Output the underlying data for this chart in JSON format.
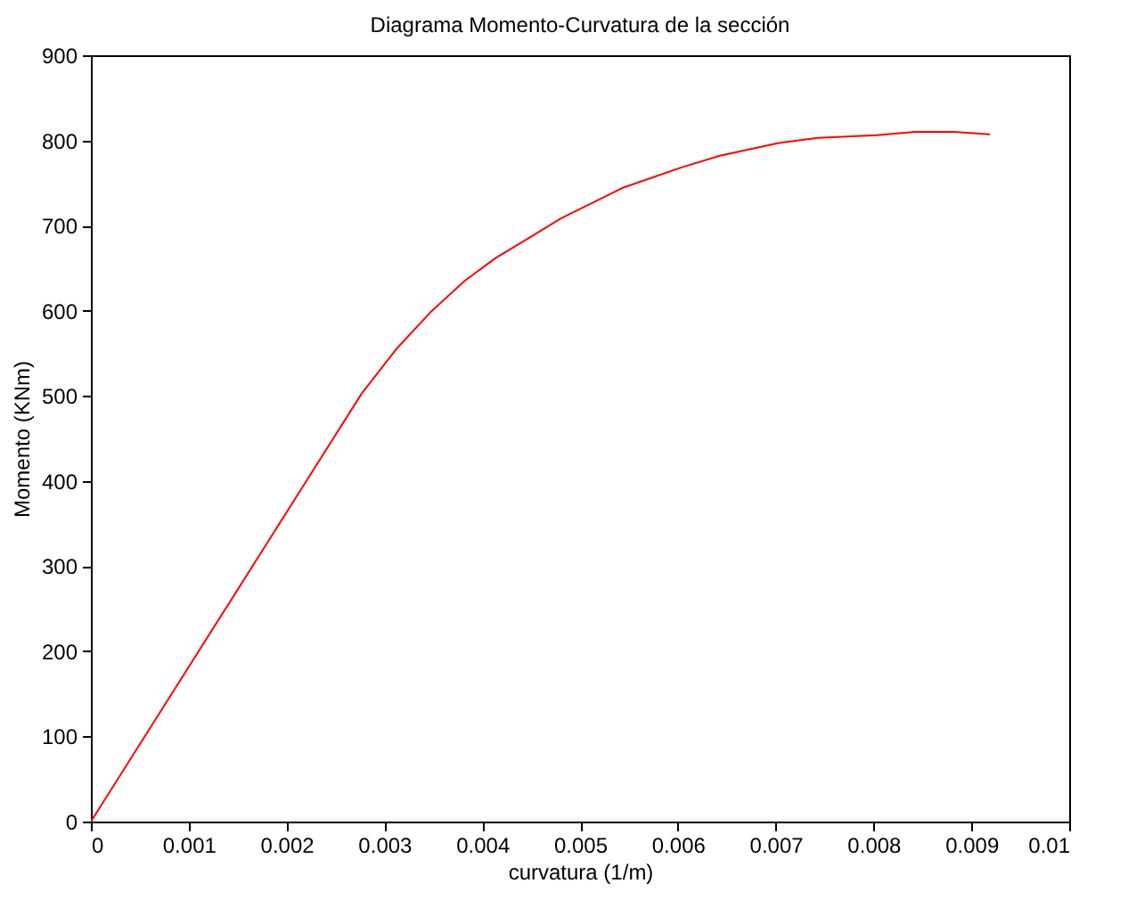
{
  "chart_data": {
    "type": "line",
    "title": "Diagrama Momento-Curvatura de la sección",
    "xlabel": "curvatura (1/m)",
    "ylabel": "Momento (KNm)",
    "x": [
      0,
      0.00277,
      0.00313,
      0.00347,
      0.00382,
      0.00414,
      0.0045,
      0.0048,
      0.00543,
      0.00603,
      0.00643,
      0.00703,
      0.00743,
      0.00803,
      0.00842,
      0.00882,
      0.00919
    ],
    "series": [
      {
        "color": "#ff0000",
        "values": [
          0,
          503,
          556,
          598,
          635,
          662,
          687,
          708,
          744,
          768,
          782,
          797,
          803,
          806,
          810,
          810,
          807
        ]
      }
    ],
    "xlim": [
      0,
      0.01
    ],
    "xticks": [
      0,
      0.001,
      0.002,
      0.003,
      0.004,
      0.005,
      0.006,
      0.007,
      0.008,
      0.009,
      0.01
    ],
    "ylim": [
      0,
      900
    ],
    "yticks": [
      0,
      100,
      200,
      300,
      400,
      500,
      600,
      700,
      800,
      900
    ],
    "grid": false
  }
}
